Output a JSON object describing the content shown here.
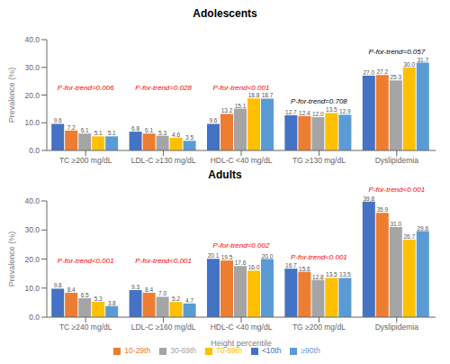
{
  "chart_data": [
    {
      "type": "bar",
      "title": "Adolescents",
      "y_label": "Prevalence (%)",
      "categories": [
        "TC ≥200 mg/dL",
        "LDL-C ≥130 mg/dL",
        "HDL-C <40 mg/dL",
        "TG ≥130 mg/dL",
        "Dyslipidemia"
      ],
      "series": [
        {
          "name": "<10th",
          "color": "#4472C4",
          "values": [
            9.6,
            6.8,
            9.6,
            12.7,
            27.0
          ],
          "value_labels": [
            "9.6",
            "6.8",
            "9.6",
            "12.7",
            "27.0"
          ]
        },
        {
          "name": "10-29th",
          "color": "#ED7D31",
          "values": [
            7.2,
            6.1,
            13.2,
            12.4,
            27.2
          ],
          "value_labels": [
            "7.2",
            "6.1",
            "13.2",
            "12.4",
            "27.2"
          ]
        },
        {
          "name": "30-69th",
          "color": "#A5A5A5",
          "values": [
            6.1,
            5.3,
            15.1,
            12.0,
            25.3
          ],
          "value_labels": [
            "6.1",
            "5.3",
            "15.1",
            "12.0",
            "25.3"
          ]
        },
        {
          "name": "70-89th",
          "color": "#FFC000",
          "values": [
            5.1,
            4.6,
            18.8,
            13.5,
            30.0
          ],
          "value_labels": [
            "5.1",
            "4.6",
            "18.8",
            "13.5",
            "30.0"
          ]
        },
        {
          "name": "≥90th",
          "color": "#5B9BD5",
          "values": [
            5.1,
            3.5,
            18.7,
            12.9,
            31.7
          ],
          "value_labels": [
            "5.1",
            "3.5",
            "18.7",
            "12.9",
            "31.7"
          ]
        }
      ],
      "annotations": [
        {
          "text": "P-for-trend=0.006",
          "color": "red",
          "category": "TC ≥200 mg/dL",
          "y": 20.5
        },
        {
          "text": "P-for-trend=0.028",
          "color": "red",
          "category": "LDL-C ≥130 mg/dL",
          "y": 20.5
        },
        {
          "text": "P-for-trend<0.001",
          "color": "red",
          "category": "HDL-C <40 mg/dL",
          "y": 20.5
        },
        {
          "text": "P-for-trend=0.708",
          "color": "black",
          "category": "TG ≥130 mg/dL",
          "y": 15.5
        },
        {
          "text": "P-for-trend=0.057",
          "color": "black",
          "category": "Dyslipidemia",
          "y": 33.5
        }
      ],
      "ylim": [
        0,
        40
      ],
      "yticks": [
        {
          "value": 0,
          "label": "0.0"
        },
        {
          "value": 10,
          "label": "10.0"
        },
        {
          "value": 20,
          "label": "20.0"
        },
        {
          "value": 30,
          "label": "30.0"
        },
        {
          "value": 40,
          "label": "40.0"
        }
      ],
      "data_labels": true,
      "grid": false
    },
    {
      "type": "bar",
      "title": "Adults",
      "y_label": "Prevalence (%)",
      "x_label": "Height percentile",
      "categories": [
        "TC ≥240 mg/dL",
        "LDL-C ≥160 mg/dL",
        "HDL-C <40 mg/dL",
        "TG ≥200 mg/dL",
        "Dyslipidemia"
      ],
      "series": [
        {
          "name": "<10th",
          "color": "#4472C4",
          "values": [
            9.8,
            9.3,
            20.1,
            16.7,
            39.8
          ],
          "value_labels": [
            "9.8",
            "9.3",
            "20.1",
            "16.7",
            "39.8"
          ]
        },
        {
          "name": "10-29th",
          "color": "#ED7D31",
          "values": [
            8.4,
            8.4,
            19.5,
            15.6,
            35.9
          ],
          "value_labels": [
            "8.4",
            "8.4",
            "19.5",
            "15.6",
            "35.9"
          ]
        },
        {
          "name": "30-69th",
          "color": "#A5A5A5",
          "values": [
            6.5,
            7.0,
            17.6,
            12.8,
            31.0
          ],
          "value_labels": [
            "6.5",
            "7.0",
            "17.6",
            "12.8",
            "31.0"
          ]
        },
        {
          "name": "70-89th",
          "color": "#FFC000",
          "values": [
            5.3,
            5.2,
            16.0,
            13.5,
            26.7
          ],
          "value_labels": [
            "5.3",
            "5.2",
            "16.0",
            "13.5",
            "26.7"
          ]
        },
        {
          "name": "≥90th",
          "color": "#5B9BD5",
          "values": [
            3.8,
            4.7,
            20.0,
            13.5,
            29.6
          ],
          "value_labels": [
            "3.8",
            "4.7",
            "20.0",
            "13.5",
            "29.6"
          ]
        }
      ],
      "annotations": [
        {
          "text": "P-for-trend<0.001",
          "color": "red",
          "category": "TC ≥240 mg/dL",
          "y": 17.5
        },
        {
          "text": "P-for-trend<0.001",
          "color": "red",
          "category": "LDL-C ≥160 mg/dL",
          "y": 17.5
        },
        {
          "text": "P-for-trend=0.002",
          "color": "red",
          "category": "HDL-C <40 mg/dL",
          "y": 22.5
        },
        {
          "text": "P-for-trend<0.001",
          "color": "red",
          "category": "TG ≥200 mg/dL",
          "y": 18.5
        },
        {
          "text": "P-for-trend<0.001",
          "color": "red",
          "category": "Dyslipidemia",
          "y": 42.0
        }
      ],
      "ylim": [
        0,
        40
      ],
      "yticks": [
        {
          "value": 0,
          "label": "0.0"
        },
        {
          "value": 10,
          "label": "10.0"
        },
        {
          "value": 20,
          "label": "20.0"
        },
        {
          "value": 30,
          "label": "30.0"
        },
        {
          "value": 40,
          "label": "40.0"
        }
      ],
      "data_labels": true,
      "grid": false,
      "legend": "bottom"
    }
  ]
}
